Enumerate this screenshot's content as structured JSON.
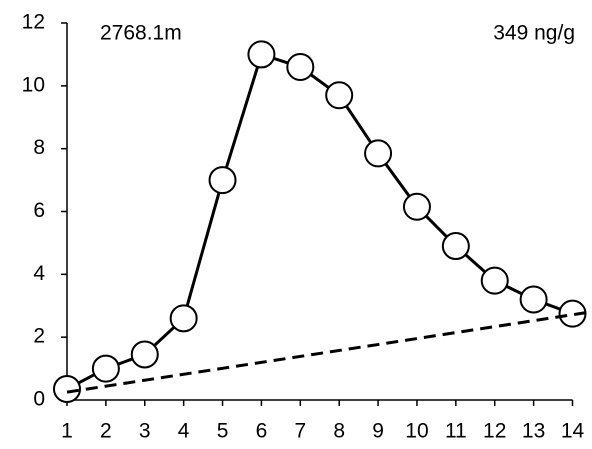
{
  "chart_data": {
    "type": "line",
    "annotations": [
      "2768.1m",
      "349 ng/g"
    ],
    "series": [
      {
        "x": [
          1,
          2,
          3,
          4,
          5,
          6,
          7,
          8,
          9,
          10,
          11,
          12,
          13,
          14
        ],
        "values": [
          0.35,
          1.0,
          1.45,
          2.6,
          7.0,
          11.0,
          10.6,
          9.7,
          7.85,
          6.15,
          4.9,
          3.8,
          3.2,
          2.75
        ],
        "color": "#000000",
        "markers": true,
        "dashed": false
      },
      {
        "x": [
          1,
          14.45
        ],
        "values": [
          0.25,
          2.8
        ],
        "color": "#000000",
        "markers": false,
        "dashed": true
      }
    ],
    "xlim": [
      1,
      14.45
    ],
    "xticks": [
      1,
      2,
      3,
      4,
      5,
      6,
      7,
      8,
      9,
      10,
      11,
      12,
      13,
      14
    ],
    "ylim": [
      0,
      12
    ],
    "yticks": [
      0,
      2,
      4,
      6,
      8,
      10,
      12
    ]
  }
}
